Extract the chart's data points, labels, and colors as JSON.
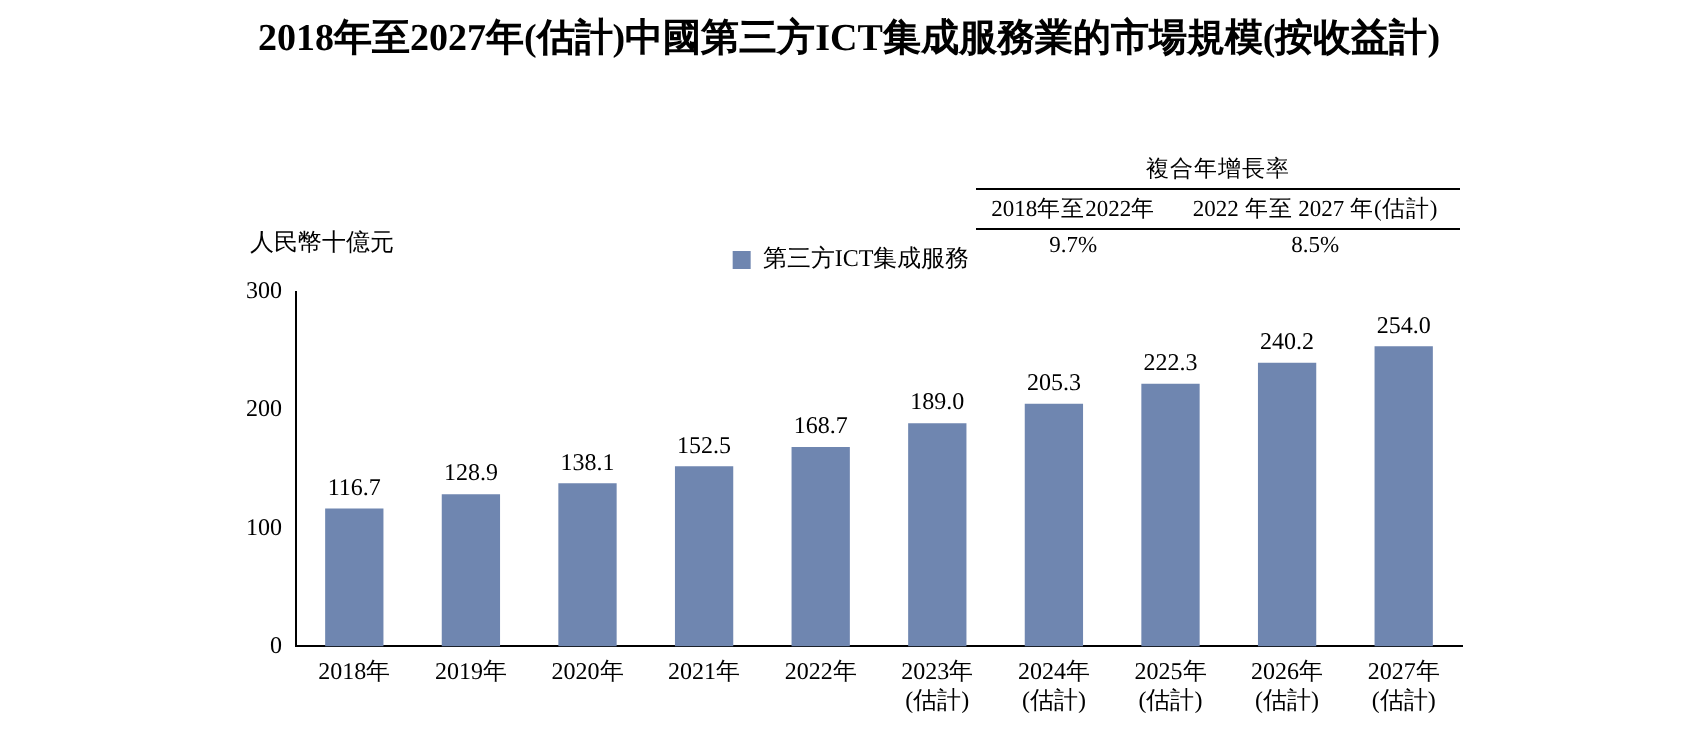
{
  "chart_data": {
    "type": "bar",
    "title": "2018年至2027年(估計)中國第三方ICT集成服務業的市場規模(按收益計)",
    "ylabel": "人民幣十億元",
    "categories": [
      "2018年",
      "2019年",
      "2020年",
      "2021年",
      "2022年",
      "2023年\n(估計)",
      "2024年\n(估計)",
      "2025年\n(估計)",
      "2026年\n(估計)",
      "2027年\n(估計)"
    ],
    "series": [
      {
        "name": "第三方ICT集成服務",
        "color": "#6f86b0",
        "values": [
          116.7,
          128.9,
          138.1,
          152.5,
          168.7,
          189.0,
          205.3,
          222.3,
          240.2,
          254.0
        ]
      }
    ],
    "value_labels": [
      "116.7",
      "128.9",
      "138.1",
      "152.5",
      "168.7",
      "189.0",
      "205.3",
      "222.3",
      "240.2",
      "254.0"
    ],
    "ylim": [
      0,
      300
    ],
    "yticks": [
      0,
      100,
      200,
      300
    ],
    "grid": false,
    "legend": "top",
    "annotations": [
      "複合年增長率",
      "2018年至2022年",
      "2022 年至 2027 年(估計)",
      "9.7%",
      "8.5%"
    ]
  }
}
